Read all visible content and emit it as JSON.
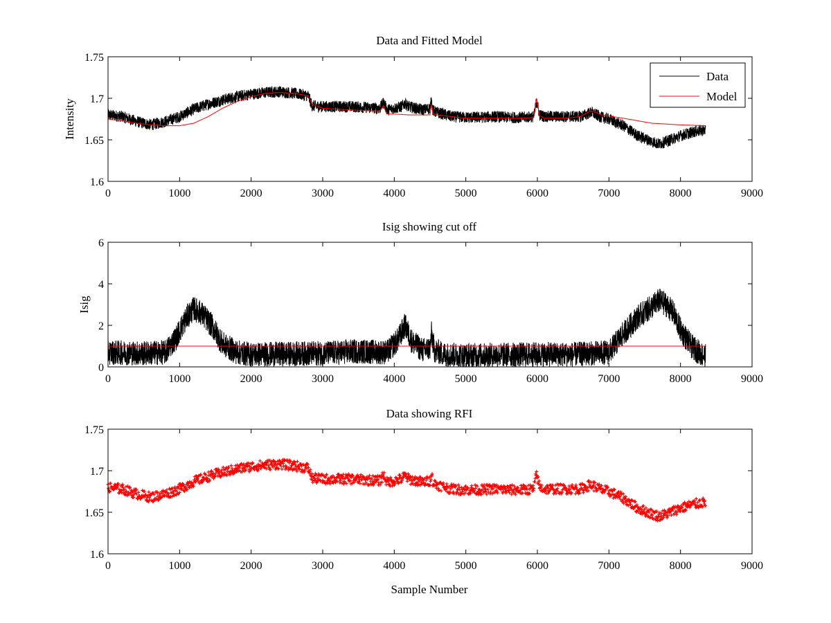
{
  "chart_data": [
    {
      "type": "line",
      "title": "Data and Fitted Model",
      "xlabel": "",
      "ylabel": "Intensity",
      "xlim": [
        0,
        9000
      ],
      "ylim": [
        1.6,
        1.75
      ],
      "xticks": [
        0,
        1000,
        2000,
        3000,
        4000,
        5000,
        6000,
        7000,
        8000,
        9000
      ],
      "yticks": [
        1.6,
        1.65,
        1.7,
        1.75
      ],
      "xtick_labels": [
        "0",
        "1000",
        "2000",
        "3000",
        "4000",
        "5000",
        "6000",
        "7000",
        "8000",
        "9000"
      ],
      "ytick_labels": [
        "1.6",
        "1.65",
        "1.7",
        "1.75"
      ],
      "grid": false,
      "legend": "top-right",
      "series": [
        {
          "name": "Data",
          "color": "#000000",
          "noise": 0.007,
          "x": [
            0,
            200,
            400,
            600,
            800,
            1000,
            1200,
            1400,
            1600,
            1800,
            2000,
            2200,
            2400,
            2600,
            2800,
            2850,
            3000,
            3200,
            3400,
            3600,
            3800,
            3850,
            3880,
            3900,
            4000,
            4100,
            4150,
            4200,
            4300,
            4400,
            4500,
            4520,
            4540,
            4600,
            4800,
            5000,
            5200,
            5400,
            5600,
            5800,
            5950,
            5990,
            6030,
            6100,
            6400,
            6600,
            6750,
            6900,
            7000,
            7200,
            7400,
            7600,
            7700,
            7800,
            8000,
            8200,
            8350
          ],
          "y": [
            1.68,
            1.678,
            1.672,
            1.668,
            1.672,
            1.678,
            1.687,
            1.693,
            1.698,
            1.702,
            1.705,
            1.707,
            1.708,
            1.706,
            1.703,
            1.691,
            1.69,
            1.69,
            1.69,
            1.689,
            1.688,
            1.695,
            1.69,
            1.686,
            1.688,
            1.69,
            1.694,
            1.69,
            1.688,
            1.686,
            1.688,
            1.698,
            1.685,
            1.683,
            1.678,
            1.677,
            1.677,
            1.678,
            1.677,
            1.677,
            1.678,
            1.697,
            1.68,
            1.678,
            1.678,
            1.678,
            1.683,
            1.677,
            1.675,
            1.667,
            1.655,
            1.648,
            1.645,
            1.648,
            1.655,
            1.66,
            1.662
          ]
        },
        {
          "name": "Model",
          "color": "#ff0000",
          "noise": 0,
          "x": [
            0,
            200,
            400,
            600,
            800,
            1000,
            1200,
            1400,
            1600,
            1800,
            2000,
            2200,
            2400,
            2600,
            2800,
            2850,
            3000,
            3200,
            3400,
            3600,
            3800,
            3850,
            3880,
            3900,
            4000,
            4200,
            4400,
            4500,
            4520,
            4540,
            4600,
            4800,
            5000,
            5400,
            5800,
            5950,
            5990,
            6030,
            6100,
            6400,
            6600,
            6750,
            6900,
            7200,
            7600,
            8000,
            8350
          ],
          "y": [
            1.675,
            1.673,
            1.67,
            1.668,
            1.667,
            1.667,
            1.67,
            1.678,
            1.688,
            1.696,
            1.702,
            1.706,
            1.707,
            1.706,
            1.703,
            1.693,
            1.688,
            1.687,
            1.686,
            1.685,
            1.685,
            1.691,
            1.684,
            1.681,
            1.681,
            1.68,
            1.68,
            1.68,
            1.693,
            1.682,
            1.68,
            1.678,
            1.676,
            1.676,
            1.676,
            1.677,
            1.7,
            1.679,
            1.676,
            1.676,
            1.678,
            1.685,
            1.68,
            1.676,
            1.67,
            1.668,
            1.667
          ]
        }
      ]
    },
    {
      "type": "line",
      "title": "Isig showing cut off",
      "xlabel": "",
      "ylabel": "Isig",
      "xlim": [
        0,
        9000
      ],
      "ylim": [
        0,
        6
      ],
      "xticks": [
        0,
        1000,
        2000,
        3000,
        4000,
        5000,
        6000,
        7000,
        8000,
        9000
      ],
      "yticks": [
        0,
        2,
        4,
        6
      ],
      "xtick_labels": [
        "0",
        "1000",
        "2000",
        "3000",
        "4000",
        "5000",
        "6000",
        "7000",
        "8000",
        "9000"
      ],
      "ytick_labels": [
        "0",
        "2",
        "4",
        "6"
      ],
      "grid": false,
      "legend": "none",
      "series": [
        {
          "color": "#000000",
          "noise": 0.6,
          "x": [
            0,
            500,
            800,
            950,
            1100,
            1200,
            1300,
            1450,
            1600,
            1800,
            2000,
            3000,
            3500,
            3900,
            4050,
            4150,
            4250,
            4400,
            4500,
            4520,
            4560,
            4700,
            5000,
            6000,
            6500,
            7000,
            7200,
            7400,
            7600,
            7700,
            7800,
            7900,
            8000,
            8150,
            8300,
            8350
          ],
          "y": [
            0.7,
            0.65,
            0.7,
            1.4,
            2.4,
            2.8,
            2.6,
            2.0,
            1.1,
            0.7,
            0.6,
            0.65,
            0.75,
            0.7,
            1.3,
            2.0,
            1.2,
            0.8,
            0.9,
            1.6,
            0.8,
            0.6,
            0.55,
            0.6,
            0.6,
            0.7,
            1.6,
            2.4,
            2.9,
            3.2,
            3.0,
            2.6,
            1.8,
            1.0,
            0.6,
            0.5
          ]
        },
        {
          "color": "#ff0000",
          "noise": 0,
          "x": [
            0,
            8350
          ],
          "y": [
            1,
            1
          ]
        }
      ]
    },
    {
      "type": "scatter",
      "title": "Data showing RFI",
      "xlabel": "Sample Number",
      "ylabel": "",
      "xlim": [
        0,
        9000
      ],
      "ylim": [
        1.6,
        1.75
      ],
      "xticks": [
        0,
        1000,
        2000,
        3000,
        4000,
        5000,
        6000,
        7000,
        8000,
        9000
      ],
      "yticks": [
        1.6,
        1.65,
        1.7,
        1.75
      ],
      "xtick_labels": [
        "0",
        "1000",
        "2000",
        "3000",
        "4000",
        "5000",
        "6000",
        "7000",
        "8000",
        "9000"
      ],
      "ytick_labels": [
        "1.6",
        "1.65",
        "1.7",
        "1.75"
      ],
      "grid": false,
      "legend": "none",
      "series": [
        {
          "color": "#ff0000",
          "marker": "+",
          "noise": 0.006,
          "x": [
            0,
            200,
            400,
            600,
            800,
            1000,
            1200,
            1400,
            1600,
            1800,
            2000,
            2200,
            2400,
            2600,
            2800,
            2850,
            3000,
            3200,
            3400,
            3600,
            3800,
            3850,
            3880,
            3900,
            4000,
            4100,
            4150,
            4200,
            4300,
            4400,
            4500,
            4520,
            4540,
            4600,
            4800,
            5000,
            5200,
            5400,
            5600,
            5800,
            5950,
            5990,
            6030,
            6100,
            6400,
            6600,
            6750,
            6900,
            7000,
            7200,
            7400,
            7600,
            7700,
            7800,
            8000,
            8200,
            8350
          ],
          "y": [
            1.68,
            1.678,
            1.672,
            1.668,
            1.672,
            1.678,
            1.687,
            1.693,
            1.698,
            1.702,
            1.705,
            1.707,
            1.708,
            1.706,
            1.703,
            1.691,
            1.69,
            1.69,
            1.69,
            1.689,
            1.688,
            1.695,
            1.69,
            1.686,
            1.688,
            1.69,
            1.694,
            1.69,
            1.688,
            1.686,
            1.688,
            1.698,
            1.685,
            1.683,
            1.678,
            1.677,
            1.677,
            1.678,
            1.677,
            1.677,
            1.678,
            1.697,
            1.68,
            1.678,
            1.678,
            1.678,
            1.683,
            1.677,
            1.675,
            1.667,
            1.655,
            1.648,
            1.645,
            1.648,
            1.655,
            1.66,
            1.662
          ]
        }
      ]
    }
  ]
}
